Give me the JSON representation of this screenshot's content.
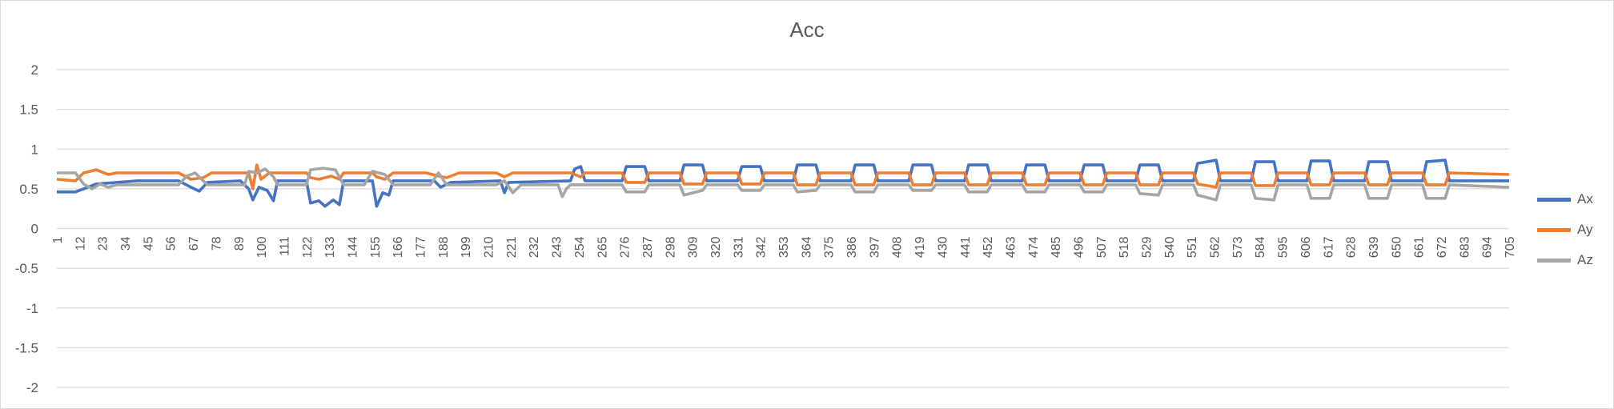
{
  "chart_data": {
    "type": "line",
    "title": "Acc",
    "xlabel": "",
    "ylabel": "",
    "x_range": [
      1,
      705
    ],
    "x_tick_labels": [
      1,
      12,
      23,
      34,
      45,
      56,
      67,
      78,
      89,
      100,
      111,
      122,
      133,
      144,
      155,
      166,
      177,
      188,
      199,
      210,
      221,
      232,
      243,
      254,
      265,
      276,
      287,
      298,
      309,
      320,
      331,
      342,
      353,
      364,
      375,
      386,
      397,
      408,
      419,
      430,
      441,
      452,
      463,
      474,
      485,
      496,
      507,
      518,
      529,
      540,
      551,
      562,
      573,
      584,
      595,
      606,
      617,
      628,
      639,
      650,
      661,
      672,
      683,
      694,
      705
    ],
    "y_ticks": [
      2,
      1.5,
      1,
      0.5,
      0,
      -0.5,
      -1,
      -1.5,
      -2
    ],
    "ylim": [
      -2,
      2
    ],
    "grid": true,
    "legend_position": "right",
    "series": [
      {
        "name": "Ax",
        "color": "#4472C4",
        "points": [
          [
            1,
            0.46
          ],
          [
            10,
            0.46
          ],
          [
            14,
            0.5
          ],
          [
            20,
            0.56
          ],
          [
            30,
            0.58
          ],
          [
            40,
            0.6
          ],
          [
            60,
            0.6
          ],
          [
            66,
            0.52
          ],
          [
            70,
            0.47
          ],
          [
            74,
            0.58
          ],
          [
            90,
            0.6
          ],
          [
            94,
            0.5
          ],
          [
            96,
            0.36
          ],
          [
            99,
            0.52
          ],
          [
            103,
            0.48
          ],
          [
            106,
            0.35
          ],
          [
            108,
            0.6
          ],
          [
            122,
            0.6
          ],
          [
            124,
            0.32
          ],
          [
            128,
            0.35
          ],
          [
            131,
            0.28
          ],
          [
            135,
            0.36
          ],
          [
            138,
            0.3
          ],
          [
            140,
            0.6
          ],
          [
            154,
            0.6
          ],
          [
            156,
            0.28
          ],
          [
            159,
            0.45
          ],
          [
            162,
            0.42
          ],
          [
            164,
            0.6
          ],
          [
            184,
            0.6
          ],
          [
            187,
            0.52
          ],
          [
            192,
            0.58
          ],
          [
            216,
            0.6
          ],
          [
            218,
            0.45
          ],
          [
            220,
            0.58
          ],
          [
            250,
            0.6
          ],
          [
            252,
            0.75
          ],
          [
            255,
            0.78
          ],
          [
            257,
            0.6
          ],
          [
            275,
            0.6
          ],
          [
            277,
            0.78
          ],
          [
            286,
            0.78
          ],
          [
            288,
            0.6
          ],
          [
            303,
            0.6
          ],
          [
            305,
            0.8
          ],
          [
            314,
            0.8
          ],
          [
            316,
            0.6
          ],
          [
            331,
            0.6
          ],
          [
            333,
            0.78
          ],
          [
            342,
            0.78
          ],
          [
            344,
            0.6
          ],
          [
            358,
            0.6
          ],
          [
            360,
            0.8
          ],
          [
            369,
            0.8
          ],
          [
            371,
            0.6
          ],
          [
            386,
            0.6
          ],
          [
            388,
            0.8
          ],
          [
            397,
            0.8
          ],
          [
            399,
            0.6
          ],
          [
            414,
            0.6
          ],
          [
            416,
            0.8
          ],
          [
            425,
            0.8
          ],
          [
            427,
            0.6
          ],
          [
            441,
            0.6
          ],
          [
            443,
            0.8
          ],
          [
            452,
            0.8
          ],
          [
            454,
            0.6
          ],
          [
            469,
            0.6
          ],
          [
            471,
            0.8
          ],
          [
            480,
            0.8
          ],
          [
            482,
            0.6
          ],
          [
            497,
            0.6
          ],
          [
            499,
            0.8
          ],
          [
            508,
            0.8
          ],
          [
            510,
            0.6
          ],
          [
            524,
            0.6
          ],
          [
            526,
            0.8
          ],
          [
            535,
            0.8
          ],
          [
            537,
            0.6
          ],
          [
            552,
            0.6
          ],
          [
            554,
            0.82
          ],
          [
            563,
            0.86
          ],
          [
            565,
            0.6
          ],
          [
            580,
            0.6
          ],
          [
            582,
            0.84
          ],
          [
            591,
            0.84
          ],
          [
            593,
            0.6
          ],
          [
            607,
            0.6
          ],
          [
            609,
            0.85
          ],
          [
            618,
            0.85
          ],
          [
            620,
            0.6
          ],
          [
            635,
            0.6
          ],
          [
            637,
            0.84
          ],
          [
            646,
            0.84
          ],
          [
            648,
            0.6
          ],
          [
            663,
            0.6
          ],
          [
            665,
            0.84
          ],
          [
            674,
            0.86
          ],
          [
            676,
            0.6
          ],
          [
            705,
            0.6
          ]
        ]
      },
      {
        "name": "Ay",
        "color": "#ED7D31",
        "points": [
          [
            1,
            0.62
          ],
          [
            10,
            0.6
          ],
          [
            14,
            0.7
          ],
          [
            20,
            0.74
          ],
          [
            26,
            0.68
          ],
          [
            30,
            0.7
          ],
          [
            60,
            0.7
          ],
          [
            66,
            0.62
          ],
          [
            72,
            0.64
          ],
          [
            76,
            0.7
          ],
          [
            94,
            0.7
          ],
          [
            96,
            0.5
          ],
          [
            98,
            0.8
          ],
          [
            100,
            0.62
          ],
          [
            104,
            0.7
          ],
          [
            122,
            0.7
          ],
          [
            124,
            0.64
          ],
          [
            128,
            0.62
          ],
          [
            134,
            0.66
          ],
          [
            138,
            0.62
          ],
          [
            140,
            0.7
          ],
          [
            154,
            0.7
          ],
          [
            156,
            0.65
          ],
          [
            160,
            0.62
          ],
          [
            164,
            0.7
          ],
          [
            180,
            0.7
          ],
          [
            186,
            0.66
          ],
          [
            190,
            0.64
          ],
          [
            196,
            0.7
          ],
          [
            214,
            0.7
          ],
          [
            218,
            0.65
          ],
          [
            222,
            0.7
          ],
          [
            250,
            0.7
          ],
          [
            252,
            0.68
          ],
          [
            255,
            0.65
          ],
          [
            257,
            0.7
          ],
          [
            275,
            0.7
          ],
          [
            277,
            0.58
          ],
          [
            286,
            0.58
          ],
          [
            288,
            0.7
          ],
          [
            303,
            0.7
          ],
          [
            305,
            0.56
          ],
          [
            314,
            0.56
          ],
          [
            316,
            0.7
          ],
          [
            331,
            0.7
          ],
          [
            333,
            0.56
          ],
          [
            342,
            0.56
          ],
          [
            344,
            0.7
          ],
          [
            358,
            0.7
          ],
          [
            360,
            0.55
          ],
          [
            369,
            0.55
          ],
          [
            371,
            0.7
          ],
          [
            386,
            0.7
          ],
          [
            388,
            0.55
          ],
          [
            397,
            0.55
          ],
          [
            399,
            0.7
          ],
          [
            414,
            0.7
          ],
          [
            416,
            0.55
          ],
          [
            425,
            0.55
          ],
          [
            427,
            0.7
          ],
          [
            441,
            0.7
          ],
          [
            443,
            0.55
          ],
          [
            452,
            0.55
          ],
          [
            454,
            0.7
          ],
          [
            469,
            0.7
          ],
          [
            471,
            0.55
          ],
          [
            480,
            0.55
          ],
          [
            482,
            0.7
          ],
          [
            497,
            0.7
          ],
          [
            499,
            0.55
          ],
          [
            508,
            0.55
          ],
          [
            510,
            0.7
          ],
          [
            524,
            0.7
          ],
          [
            526,
            0.55
          ],
          [
            535,
            0.55
          ],
          [
            537,
            0.7
          ],
          [
            552,
            0.7
          ],
          [
            554,
            0.56
          ],
          [
            563,
            0.52
          ],
          [
            565,
            0.7
          ],
          [
            580,
            0.7
          ],
          [
            582,
            0.54
          ],
          [
            591,
            0.54
          ],
          [
            593,
            0.7
          ],
          [
            607,
            0.7
          ],
          [
            609,
            0.55
          ],
          [
            618,
            0.55
          ],
          [
            620,
            0.7
          ],
          [
            635,
            0.7
          ],
          [
            637,
            0.55
          ],
          [
            646,
            0.55
          ],
          [
            648,
            0.7
          ],
          [
            663,
            0.7
          ],
          [
            665,
            0.55
          ],
          [
            674,
            0.55
          ],
          [
            676,
            0.7
          ],
          [
            705,
            0.68
          ]
        ]
      },
      {
        "name": "Az",
        "color": "#A5A5A5",
        "points": [
          [
            1,
            0.7
          ],
          [
            10,
            0.7
          ],
          [
            14,
            0.56
          ],
          [
            18,
            0.5
          ],
          [
            22,
            0.56
          ],
          [
            26,
            0.52
          ],
          [
            30,
            0.55
          ],
          [
            60,
            0.55
          ],
          [
            64,
            0.66
          ],
          [
            68,
            0.7
          ],
          [
            74,
            0.55
          ],
          [
            92,
            0.55
          ],
          [
            94,
            0.72
          ],
          [
            98,
            0.7
          ],
          [
            102,
            0.75
          ],
          [
            106,
            0.65
          ],
          [
            108,
            0.55
          ],
          [
            122,
            0.55
          ],
          [
            124,
            0.74
          ],
          [
            130,
            0.76
          ],
          [
            136,
            0.74
          ],
          [
            140,
            0.55
          ],
          [
            150,
            0.55
          ],
          [
            154,
            0.72
          ],
          [
            160,
            0.68
          ],
          [
            164,
            0.55
          ],
          [
            182,
            0.55
          ],
          [
            186,
            0.7
          ],
          [
            190,
            0.55
          ],
          [
            214,
            0.55
          ],
          [
            218,
            0.6
          ],
          [
            222,
            0.45
          ],
          [
            226,
            0.55
          ],
          [
            244,
            0.55
          ],
          [
            246,
            0.4
          ],
          [
            248,
            0.5
          ],
          [
            250,
            0.55
          ],
          [
            275,
            0.55
          ],
          [
            277,
            0.46
          ],
          [
            286,
            0.46
          ],
          [
            288,
            0.55
          ],
          [
            303,
            0.55
          ],
          [
            305,
            0.42
          ],
          [
            314,
            0.48
          ],
          [
            316,
            0.55
          ],
          [
            331,
            0.55
          ],
          [
            333,
            0.48
          ],
          [
            342,
            0.48
          ],
          [
            344,
            0.55
          ],
          [
            358,
            0.55
          ],
          [
            360,
            0.46
          ],
          [
            369,
            0.48
          ],
          [
            371,
            0.55
          ],
          [
            386,
            0.55
          ],
          [
            388,
            0.46
          ],
          [
            397,
            0.46
          ],
          [
            399,
            0.55
          ],
          [
            414,
            0.55
          ],
          [
            416,
            0.48
          ],
          [
            425,
            0.48
          ],
          [
            427,
            0.55
          ],
          [
            441,
            0.55
          ],
          [
            443,
            0.46
          ],
          [
            452,
            0.46
          ],
          [
            454,
            0.55
          ],
          [
            469,
            0.55
          ],
          [
            471,
            0.46
          ],
          [
            480,
            0.46
          ],
          [
            482,
            0.55
          ],
          [
            497,
            0.55
          ],
          [
            499,
            0.46
          ],
          [
            508,
            0.46
          ],
          [
            510,
            0.55
          ],
          [
            524,
            0.55
          ],
          [
            526,
            0.44
          ],
          [
            535,
            0.42
          ],
          [
            537,
            0.55
          ],
          [
            552,
            0.55
          ],
          [
            554,
            0.42
          ],
          [
            563,
            0.36
          ],
          [
            565,
            0.55
          ],
          [
            580,
            0.55
          ],
          [
            582,
            0.38
          ],
          [
            591,
            0.36
          ],
          [
            593,
            0.55
          ],
          [
            607,
            0.55
          ],
          [
            609,
            0.38
          ],
          [
            618,
            0.38
          ],
          [
            620,
            0.55
          ],
          [
            635,
            0.55
          ],
          [
            637,
            0.38
          ],
          [
            646,
            0.38
          ],
          [
            648,
            0.55
          ],
          [
            663,
            0.55
          ],
          [
            665,
            0.38
          ],
          [
            674,
            0.38
          ],
          [
            676,
            0.55
          ],
          [
            705,
            0.52
          ]
        ]
      }
    ]
  }
}
